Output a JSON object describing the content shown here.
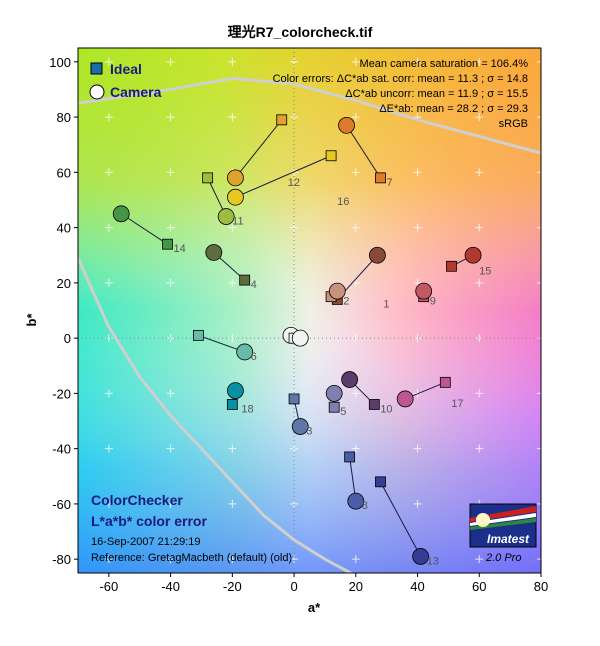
{
  "chart_data": {
    "type": "scatter",
    "title": "理光R7_colorcheck.tif",
    "xlabel": "a*",
    "ylabel": "b*",
    "xlim": [
      -70,
      80
    ],
    "ylim": [
      -85,
      105
    ],
    "xticks": [
      -60,
      -40,
      -20,
      0,
      20,
      40,
      60,
      80
    ],
    "yticks": [
      -80,
      -60,
      -40,
      -20,
      0,
      20,
      40,
      60,
      80,
      100
    ],
    "xtick_labels": [
      "-60",
      "-40",
      "-20",
      "0",
      "20",
      "40",
      "60",
      "80"
    ],
    "ytick_labels": [
      "-80",
      "-60",
      "-40",
      "-20",
      "0",
      "20",
      "40",
      "60",
      "80",
      "100"
    ],
    "grid": true,
    "legend": {
      "position": "top-left",
      "entries": [
        {
          "name": "Ideal",
          "marker": "square"
        },
        {
          "name": "Camera",
          "marker": "circle"
        }
      ]
    },
    "stats": [
      "Mean camera saturation = 106.4%",
      "Color errors: ΔC*ab sat. corr:  mean = 11.3 ;  σ = 14.8",
      "ΔC*ab uncorr:  mean = 11.9 ;  σ = 15.5",
      "ΔE*ab:  mean = 28.2 ;  σ = 29.3",
      "sRGB"
    ],
    "patches": [
      {
        "label": "1",
        "ideal": [
          14,
          14
        ],
        "camera": [
          27,
          30
        ],
        "color": "#8a4a3a"
      },
      {
        "label": "2",
        "ideal": [
          12,
          15
        ],
        "camera": [
          14,
          17
        ],
        "color": "#c8927c"
      },
      {
        "label": "3",
        "ideal": [
          0,
          -22
        ],
        "camera": [
          2,
          -32
        ],
        "color": "#5e78a6"
      },
      {
        "label": "4",
        "ideal": [
          -16,
          21
        ],
        "camera": [
          -26,
          31
        ],
        "color": "#5e6c3e"
      },
      {
        "label": "5",
        "ideal": [
          13,
          -25
        ],
        "camera": [
          13,
          -20
        ],
        "color": "#8080b0"
      },
      {
        "label": "6",
        "ideal": [
          -31,
          1
        ],
        "camera": [
          -16,
          -5
        ],
        "color": "#66bca8"
      },
      {
        "label": "7",
        "ideal": [
          28,
          58
        ],
        "camera": [
          17,
          77
        ],
        "color": "#dc7c2a"
      },
      {
        "label": "8",
        "ideal": [
          18,
          -43
        ],
        "camera": [
          20,
          -59
        ],
        "color": "#4a5ea8"
      },
      {
        "label": "9",
        "ideal": [
          42,
          15
        ],
        "camera": [
          42,
          17
        ],
        "color": "#c25864"
      },
      {
        "label": "10",
        "ideal": [
          26,
          -24
        ],
        "camera": [
          18,
          -15
        ],
        "color": "#5c3c6a"
      },
      {
        "label": "11",
        "ideal": [
          -28,
          58
        ],
        "camera": [
          -22,
          44
        ],
        "color": "#9ebc40"
      },
      {
        "label": "12",
        "ideal": [
          -4,
          79
        ],
        "camera": [
          -19,
          58
        ],
        "color": "#e0a22e"
      },
      {
        "label": "13",
        "ideal": [
          28,
          -52
        ],
        "camera": [
          41,
          -79
        ],
        "color": "#363c96"
      },
      {
        "label": "14",
        "ideal": [
          -41,
          34
        ],
        "camera": [
          -56,
          45
        ],
        "color": "#469446"
      },
      {
        "label": "15",
        "ideal": [
          51,
          26
        ],
        "camera": [
          58,
          30
        ],
        "color": "#b03a30"
      },
      {
        "label": "16",
        "ideal": [
          12,
          66
        ],
        "camera": [
          -19,
          51
        ],
        "color": "#e6c820"
      },
      {
        "label": "17",
        "ideal": [
          49,
          -16
        ],
        "camera": [
          36,
          -22
        ],
        "color": "#be5694"
      },
      {
        "label": "18",
        "ideal": [
          -20,
          -24
        ],
        "camera": [
          -19,
          -19
        ],
        "color": "#0890a4"
      },
      {
        "label": "",
        "ideal": [
          0,
          0
        ],
        "camera": [
          -1,
          1
        ],
        "color": "#f4f4f4"
      },
      {
        "label": "",
        "ideal": [
          0,
          0
        ],
        "camera": [
          2,
          0
        ],
        "color": "#f4f4f4"
      }
    ],
    "colorchecker_title": "ColorChecker",
    "colorchecker_subtitle": "L*a*b* color error",
    "date": "16-Sep-2007 21:29:19",
    "reference": "Reference: GretagMacbeth (default) (old)"
  },
  "logo": {
    "name": "Imatest",
    "version": "2.0  Pro"
  },
  "colors": {
    "background": "#ffffff",
    "gamut_line": "#c8c8c8",
    "legend_text": "#1a1a80",
    "logo_bg": "#1a2f8a"
  },
  "icons": {
    "logo": "imatest-logo-icon"
  }
}
